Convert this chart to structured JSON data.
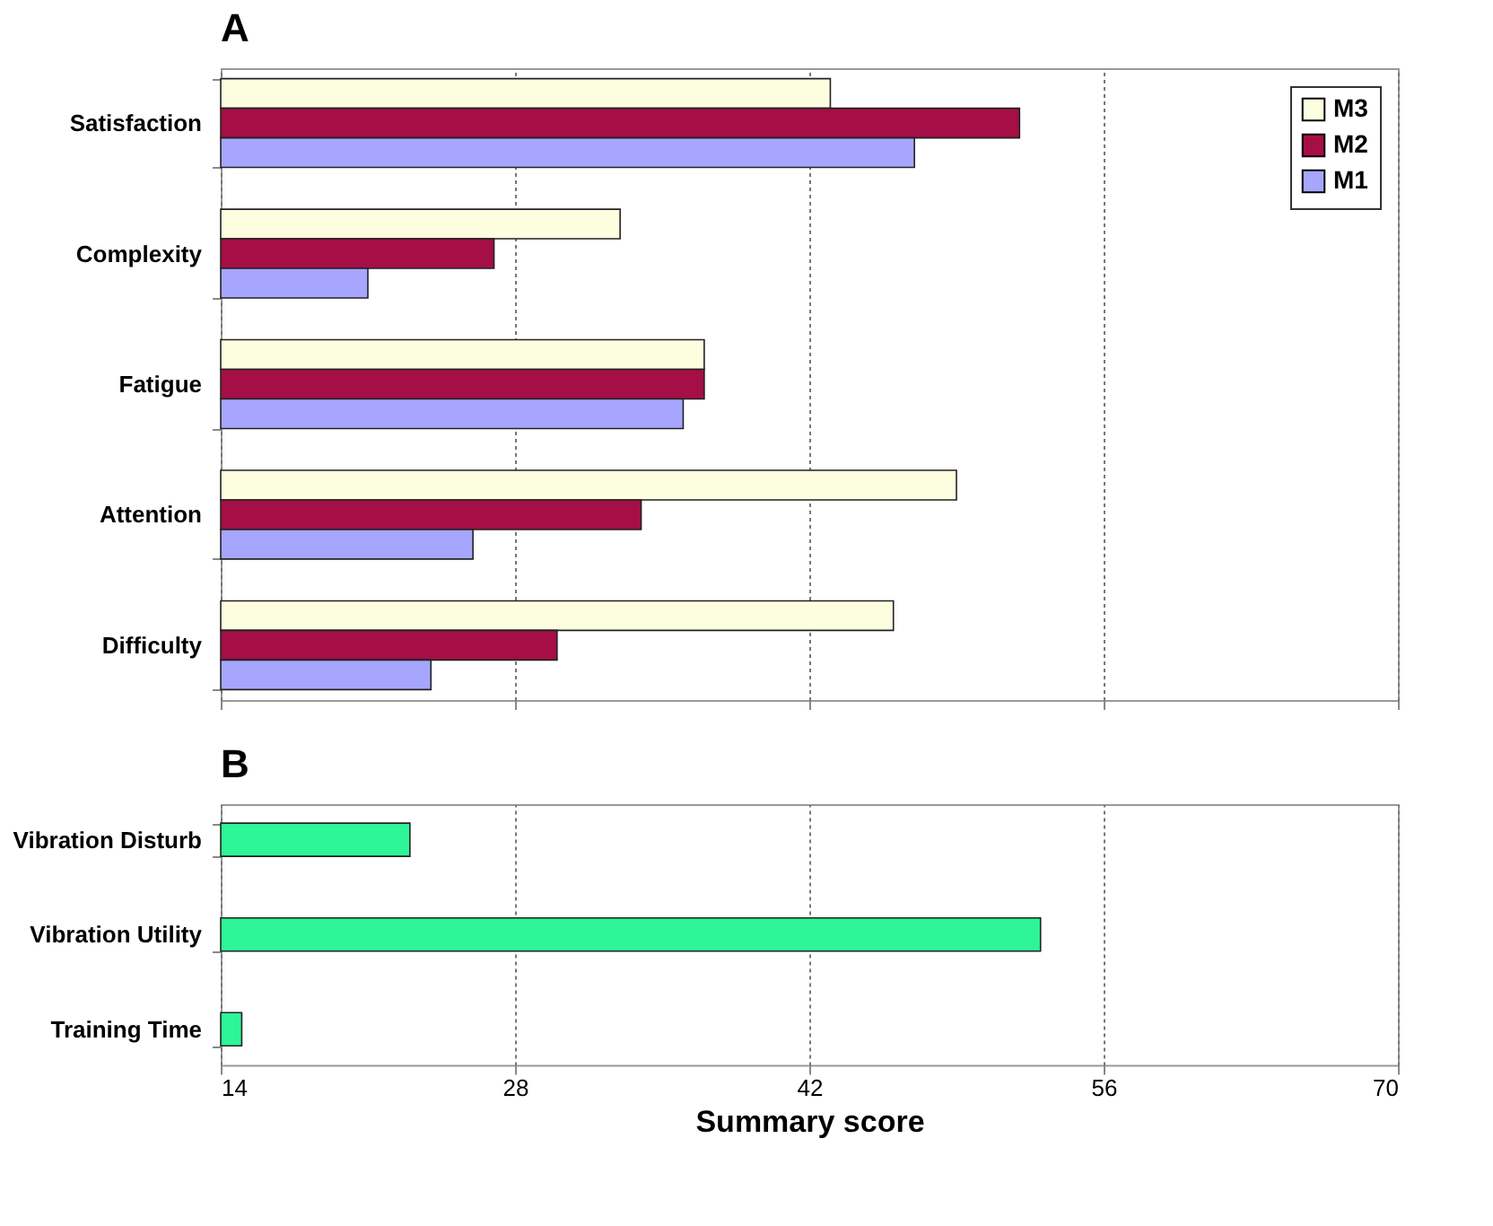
{
  "chart_data": [
    {
      "type": "bar",
      "title": "A",
      "orientation": "horizontal",
      "categories": [
        "Satisfaction",
        "Complexity",
        "Fatigue",
        "Attention",
        "Difficulty"
      ],
      "series": [
        {
          "name": "M3",
          "color": "#fdfde0",
          "values": [
            43,
            33,
            37,
            49,
            46
          ]
        },
        {
          "name": "M2",
          "color": "#a50f45",
          "values": [
            52,
            27,
            37,
            34,
            30
          ]
        },
        {
          "name": "M1",
          "color": "#a6a6ff",
          "values": [
            47,
            21,
            36,
            26,
            24
          ]
        }
      ],
      "xlim": [
        14,
        70
      ],
      "xticks": [
        14,
        28,
        42,
        56,
        70
      ],
      "grid": "x",
      "legend": "top right",
      "tick_labels": "y"
    },
    {
      "type": "bar",
      "title": "B",
      "orientation": "horizontal",
      "categories": [
        "Vibration Disturb",
        "Vibration Utility",
        "Training Time"
      ],
      "series": [
        {
          "color": "#2ef598",
          "values": [
            23,
            53,
            15
          ]
        }
      ],
      "xlim": [
        14,
        70
      ],
      "xticks": [
        14,
        28,
        42,
        56,
        70
      ],
      "grid": "x",
      "xlabel": "Summary score"
    }
  ]
}
